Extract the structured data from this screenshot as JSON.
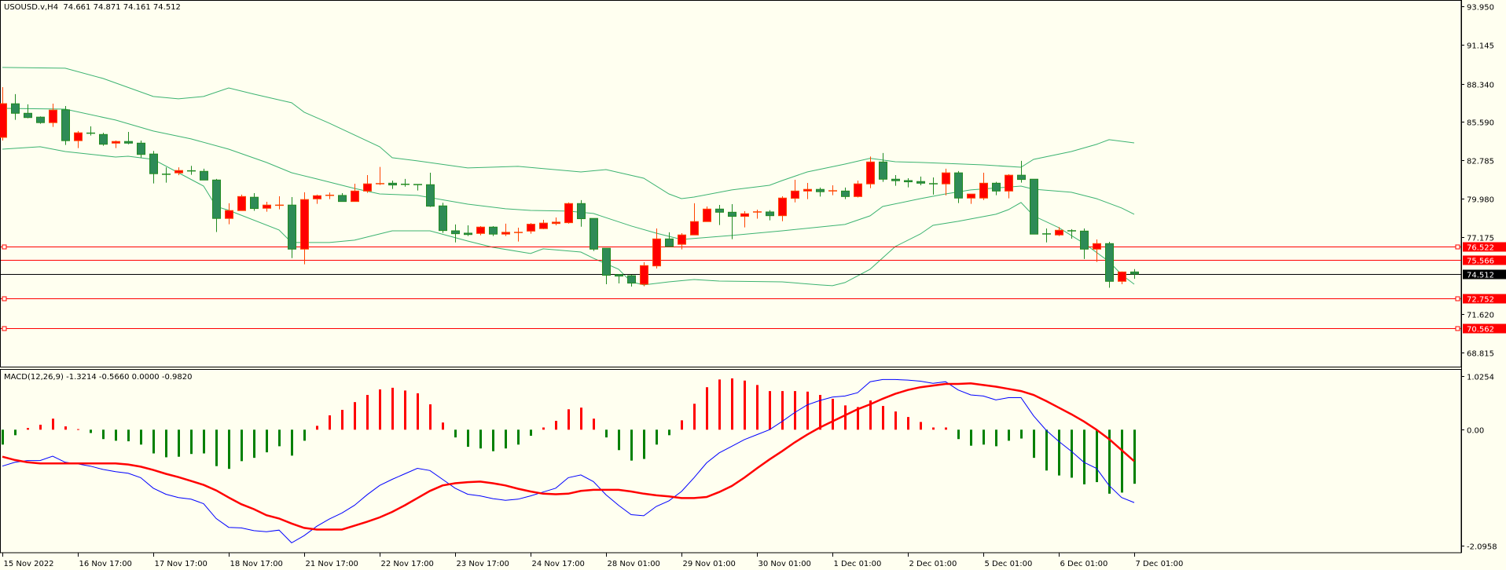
{
  "header": {
    "symbol_line": "USOUSD.v,H4  74.661 74.871 74.161 74.512"
  },
  "macd_header": {
    "label": "MACD(12,26,9) -1.3214 -0.5660 0.0000 -0.9820"
  },
  "colors": {
    "background": "#FFFFF0",
    "bull_body": "#FF0000",
    "bull_edge": "#FF4500",
    "bear_body": "#2E8B57",
    "bear_edge": "#228B22",
    "bands": "#3CB371",
    "hline": "#FF0000",
    "bid_line": "#000000",
    "hist_pos": "#FF0000",
    "hist_neg": "#008000",
    "macd_main": "#0000FF",
    "macd_signal": "#FF0000"
  },
  "chart_data": {
    "type": "candlestick",
    "symbol": "USOUSD.v",
    "timeframe": "H4",
    "ylim": [
      67.78,
      94.42
    ],
    "price_axis": {
      "ticks": [
        "93.950",
        "91.145",
        "88.340",
        "85.590",
        "82.785",
        "79.980",
        "77.175",
        "71.620",
        "68.815"
      ]
    },
    "time_labels": [
      {
        "bar": 0,
        "text": "15 Nov 2022"
      },
      {
        "bar": 6,
        "text": "16 Nov 17:00"
      },
      {
        "bar": 12,
        "text": "17 Nov 17:00"
      },
      {
        "bar": 18,
        "text": "18 Nov 17:00"
      },
      {
        "bar": 24,
        "text": "21 Nov 17:00"
      },
      {
        "bar": 30,
        "text": "22 Nov 17:00"
      },
      {
        "bar": 36,
        "text": "23 Nov 17:00"
      },
      {
        "bar": 42,
        "text": "24 Nov 17:00"
      },
      {
        "bar": 48,
        "text": "28 Nov 01:00"
      },
      {
        "bar": 54,
        "text": "29 Nov 01:00"
      },
      {
        "bar": 60,
        "text": "30 Nov 01:00"
      },
      {
        "bar": 66,
        "text": "1 Dec 01:00"
      },
      {
        "bar": 72,
        "text": "2 Dec 01:00"
      },
      {
        "bar": 78,
        "text": "5 Dec 01:00"
      },
      {
        "bar": 84,
        "text": "6 Dec 01:00"
      },
      {
        "bar": 90,
        "text": "7 Dec 01:00"
      }
    ],
    "ohlc": [
      [
        84.44,
        88.09,
        84.21,
        86.89
      ],
      [
        86.88,
        87.58,
        85.71,
        86.19
      ],
      [
        86.19,
        86.84,
        85.83,
        85.88
      ],
      [
        85.91,
        85.96,
        85.43,
        85.51
      ],
      [
        85.51,
        86.89,
        85.2,
        86.42
      ],
      [
        86.44,
        86.72,
        83.89,
        84.2
      ],
      [
        84.2,
        84.9,
        83.66,
        84.77
      ],
      [
        84.78,
        85.24,
        84.57,
        84.71
      ],
      [
        84.65,
        84.77,
        83.83,
        83.94
      ],
      [
        84.02,
        84.21,
        83.66,
        84.14
      ],
      [
        84.14,
        84.84,
        83.94,
        84.02
      ],
      [
        84.02,
        84.21,
        82.96,
        83.2
      ],
      [
        83.23,
        83.45,
        81.09,
        81.8
      ],
      [
        81.8,
        82.26,
        81.15,
        81.72
      ],
      [
        81.86,
        82.26,
        81.69,
        82.03
      ],
      [
        82.04,
        82.37,
        81.72,
        81.97
      ],
      [
        81.97,
        82.16,
        81.34,
        81.34
      ],
      [
        81.34,
        81.42,
        77.56,
        78.55
      ],
      [
        78.55,
        79.65,
        78.13,
        79.12
      ],
      [
        79.12,
        80.28,
        79.12,
        80.14
      ],
      [
        80.09,
        80.39,
        79.1,
        79.27
      ],
      [
        79.29,
        79.76,
        79.04,
        79.52
      ],
      [
        79.5,
        80.16,
        79.21,
        79.52
      ],
      [
        79.52,
        80.1,
        75.67,
        76.32
      ],
      [
        76.32,
        80.45,
        75.22,
        79.92
      ],
      [
        79.97,
        80.28,
        79.61,
        80.2
      ],
      [
        80.22,
        80.43,
        79.95,
        80.24
      ],
      [
        80.22,
        80.39,
        79.78,
        79.78
      ],
      [
        79.78,
        81.07,
        79.78,
        80.54
      ],
      [
        80.54,
        81.7,
        80.41,
        81.06
      ],
      [
        81.04,
        82.29,
        80.98,
        81.11
      ],
      [
        81.11,
        81.3,
        80.69,
        80.98
      ],
      [
        81.05,
        81.42,
        80.86,
        81.01
      ],
      [
        81.02,
        81.02,
        80.58,
        81.0
      ],
      [
        81.0,
        81.87,
        79.38,
        79.44
      ],
      [
        79.46,
        79.69,
        77.5,
        77.67
      ],
      [
        77.65,
        78.11,
        76.81,
        77.44
      ],
      [
        77.48,
        78.05,
        77.27,
        77.38
      ],
      [
        77.46,
        77.99,
        77.33,
        77.92
      ],
      [
        77.92,
        77.99,
        77.27,
        77.41
      ],
      [
        77.41,
        78.17,
        77.27,
        77.54
      ],
      [
        77.51,
        77.88,
        76.87,
        77.55
      ],
      [
        77.63,
        78.21,
        77.44,
        78.13
      ],
      [
        77.81,
        78.45,
        77.77,
        78.21
      ],
      [
        78.18,
        78.62,
        78.05,
        78.28
      ],
      [
        78.24,
        79.71,
        78.17,
        79.63
      ],
      [
        79.63,
        79.88,
        77.95,
        78.53
      ],
      [
        78.55,
        78.55,
        76.19,
        76.32
      ],
      [
        76.38,
        76.38,
        73.77,
        74.42
      ],
      [
        74.47,
        74.51,
        73.83,
        74.36
      ],
      [
        74.39,
        74.46,
        73.6,
        73.85
      ],
      [
        73.77,
        75.37,
        73.62,
        75.12
      ],
      [
        75.1,
        77.82,
        74.91,
        77.06
      ],
      [
        77.06,
        77.54,
        76.51,
        76.51
      ],
      [
        76.67,
        77.48,
        76.3,
        77.35
      ],
      [
        77.35,
        79.65,
        77.35,
        78.32
      ],
      [
        78.32,
        79.42,
        78.32,
        79.23
      ],
      [
        79.23,
        79.53,
        78.07,
        79.0
      ],
      [
        79.0,
        79.59,
        77.04,
        78.7
      ],
      [
        78.7,
        79.08,
        77.9,
        78.89
      ],
      [
        79.01,
        79.19,
        78.53,
        79.03
      ],
      [
        79.02,
        79.15,
        78.41,
        78.75
      ],
      [
        78.75,
        80.16,
        78.35,
        80.03
      ],
      [
        80.01,
        81.36,
        79.72,
        80.54
      ],
      [
        80.54,
        81.13,
        79.95,
        80.66
      ],
      [
        80.66,
        80.79,
        80.14,
        80.49
      ],
      [
        80.54,
        80.96,
        80.24,
        80.57
      ],
      [
        80.54,
        80.79,
        79.95,
        80.14
      ],
      [
        80.14,
        81.3,
        80.07,
        81.06
      ],
      [
        81.06,
        83.05,
        80.75,
        82.65
      ],
      [
        82.65,
        83.3,
        81.21,
        81.4
      ],
      [
        81.4,
        81.7,
        80.92,
        81.29
      ],
      [
        81.3,
        81.47,
        80.81,
        81.21
      ],
      [
        81.23,
        81.59,
        80.96,
        81.11
      ],
      [
        81.11,
        81.53,
        80.28,
        81.03
      ],
      [
        81.06,
        82.16,
        80.22,
        81.86
      ],
      [
        81.86,
        81.99,
        79.67,
        80.03
      ],
      [
        80.03,
        80.32,
        79.61,
        80.32
      ],
      [
        80.03,
        81.87,
        79.89,
        81.11
      ],
      [
        81.11,
        81.21,
        80.24,
        80.54
      ],
      [
        80.54,
        81.76,
        80.01,
        81.69
      ],
      [
        81.69,
        82.73,
        81.15,
        81.38
      ],
      [
        81.4,
        81.4,
        77.41,
        77.41
      ],
      [
        77.44,
        77.82,
        76.81,
        77.41
      ],
      [
        77.35,
        77.92,
        77.27,
        77.69
      ],
      [
        77.69,
        77.77,
        77.08,
        77.61
      ],
      [
        77.63,
        77.82,
        75.6,
        76.32
      ],
      [
        76.32,
        77.02,
        75.39,
        76.72
      ],
      [
        76.72,
        76.85,
        73.51,
        73.98
      ],
      [
        73.98,
        74.7,
        73.77,
        74.66
      ],
      [
        74.661,
        74.871,
        74.161,
        74.512
      ]
    ],
    "bollinger": {
      "upper": [
        [
          0,
          89.52
        ],
        [
          5,
          89.46
        ],
        [
          8,
          88.72
        ],
        [
          12,
          87.41
        ],
        [
          14,
          87.24
        ],
        [
          16,
          87.41
        ],
        [
          18,
          88.03
        ],
        [
          20,
          87.58
        ],
        [
          23,
          86.95
        ],
        [
          24,
          86.27
        ],
        [
          26,
          85.47
        ],
        [
          30,
          83.76
        ],
        [
          31,
          82.96
        ],
        [
          33,
          82.73
        ],
        [
          37,
          82.22
        ],
        [
          41,
          82.33
        ],
        [
          46,
          81.93
        ],
        [
          48,
          82.1
        ],
        [
          51,
          81.47
        ],
        [
          53,
          80.33
        ],
        [
          54,
          79.99
        ],
        [
          55,
          80.1
        ],
        [
          58,
          80.62
        ],
        [
          61,
          80.96
        ],
        [
          62,
          81.3
        ],
        [
          64,
          81.93
        ],
        [
          67,
          82.5
        ],
        [
          69,
          82.92
        ],
        [
          71,
          82.67
        ],
        [
          73,
          82.62
        ],
        [
          78,
          82.44
        ],
        [
          81,
          82.27
        ],
        [
          82,
          82.84
        ],
        [
          85,
          83.41
        ],
        [
          87,
          83.93
        ],
        [
          88,
          84.27
        ],
        [
          90,
          84.04
        ]
      ],
      "middle": [
        [
          0,
          86.55
        ],
        [
          5,
          86.49
        ],
        [
          9,
          85.7
        ],
        [
          12,
          84.9
        ],
        [
          15,
          84.33
        ],
        [
          18,
          83.58
        ],
        [
          21,
          82.62
        ],
        [
          23,
          81.87
        ],
        [
          25,
          81.42
        ],
        [
          28,
          80.73
        ],
        [
          30,
          80.33
        ],
        [
          33,
          80.22
        ],
        [
          37,
          79.59
        ],
        [
          40,
          79.25
        ],
        [
          42,
          79.13
        ],
        [
          45,
          79.08
        ],
        [
          47,
          78.91
        ],
        [
          50,
          78.0
        ],
        [
          52,
          77.48
        ],
        [
          54,
          77.02
        ],
        [
          58,
          77.31
        ],
        [
          62,
          77.65
        ],
        [
          67,
          78.11
        ],
        [
          69,
          78.74
        ],
        [
          70,
          79.42
        ],
        [
          73,
          79.99
        ],
        [
          75,
          80.33
        ],
        [
          77,
          80.62
        ],
        [
          81,
          80.9
        ],
        [
          82,
          80.67
        ],
        [
          85,
          80.45
        ],
        [
          87,
          79.99
        ],
        [
          89,
          79.31
        ],
        [
          90,
          78.85
        ]
      ],
      "lower": [
        [
          0,
          83.58
        ],
        [
          3,
          83.76
        ],
        [
          5,
          83.41
        ],
        [
          9,
          83.01
        ],
        [
          10,
          83.07
        ],
        [
          12,
          82.84
        ],
        [
          16,
          80.9
        ],
        [
          17,
          79.42
        ],
        [
          18,
          79.14
        ],
        [
          22,
          77.71
        ],
        [
          23,
          76.8
        ],
        [
          26,
          76.8
        ],
        [
          28,
          76.97
        ],
        [
          31,
          77.65
        ],
        [
          34,
          77.65
        ],
        [
          37,
          76.91
        ],
        [
          39,
          76.45
        ],
        [
          42,
          76.0
        ],
        [
          43,
          76.34
        ],
        [
          46,
          76.11
        ],
        [
          47,
          75.66
        ],
        [
          49,
          74.86
        ],
        [
          50,
          73.94
        ],
        [
          51,
          73.72
        ],
        [
          53,
          73.94
        ],
        [
          55,
          74.11
        ],
        [
          57,
          74.0
        ],
        [
          62,
          73.94
        ],
        [
          65,
          73.72
        ],
        [
          66,
          73.66
        ],
        [
          67,
          73.89
        ],
        [
          69,
          74.86
        ],
        [
          71,
          76.51
        ],
        [
          73,
          77.42
        ],
        [
          74,
          78.05
        ],
        [
          76,
          78.34
        ],
        [
          79,
          78.85
        ],
        [
          80,
          79.19
        ],
        [
          81,
          79.71
        ],
        [
          82,
          78.74
        ],
        [
          84,
          77.88
        ],
        [
          86,
          76.74
        ],
        [
          88,
          75.42
        ],
        [
          89,
          74.46
        ],
        [
          90,
          73.77
        ]
      ]
    },
    "horizontal_lines": [
      {
        "price": "76.522",
        "color": "#FF0000",
        "markers": true
      },
      {
        "price": "75.566",
        "color": "#FF0000",
        "markers": false
      },
      {
        "price": "74.512",
        "color": "#000000",
        "markers": false,
        "bid": true
      },
      {
        "price": "72.752",
        "color": "#FF0000",
        "markers": true
      },
      {
        "price": "70.562",
        "color": "#FF0000",
        "markers": true
      }
    ],
    "macd": {
      "params": "12,26,9",
      "ylim": [
        -2.23,
        1.1
      ],
      "axis_labels": [
        "1.0254",
        "0.00",
        "-2.0958"
      ],
      "histogram": [
        -0.27,
        -0.1,
        0.03,
        0.09,
        0.2,
        0.06,
        0.01,
        -0.06,
        -0.17,
        -0.2,
        -0.21,
        -0.27,
        -0.43,
        -0.5,
        -0.49,
        -0.44,
        -0.43,
        -0.66,
        -0.71,
        -0.57,
        -0.51,
        -0.41,
        -0.3,
        -0.47,
        -0.2,
        0.07,
        0.26,
        0.36,
        0.5,
        0.63,
        0.73,
        0.76,
        0.71,
        0.66,
        0.46,
        0.13,
        -0.14,
        -0.31,
        -0.34,
        -0.39,
        -0.34,
        -0.27,
        -0.11,
        0.04,
        0.16,
        0.37,
        0.4,
        0.2,
        -0.14,
        -0.37,
        -0.56,
        -0.53,
        -0.27,
        -0.1,
        0.17,
        0.47,
        0.77,
        0.91,
        0.93,
        0.89,
        0.81,
        0.7,
        0.7,
        0.7,
        0.69,
        0.63,
        0.56,
        0.44,
        0.41,
        0.53,
        0.43,
        0.33,
        0.23,
        0.14,
        0.04,
        0.04,
        -0.17,
        -0.29,
        -0.27,
        -0.3,
        -0.2,
        -0.16,
        -0.51,
        -0.74,
        -0.83,
        -0.87,
        -0.99,
        -0.95,
        -1.16,
        -1.14,
        -0.98
      ],
      "main": [
        -0.66,
        -0.59,
        -0.56,
        -0.56,
        -0.48,
        -0.59,
        -0.62,
        -0.66,
        -0.72,
        -0.76,
        -0.79,
        -0.87,
        -1.06,
        -1.17,
        -1.23,
        -1.26,
        -1.34,
        -1.61,
        -1.77,
        -1.78,
        -1.83,
        -1.85,
        -1.82,
        -2.05,
        -1.92,
        -1.75,
        -1.62,
        -1.51,
        -1.37,
        -1.18,
        -1.01,
        -0.9,
        -0.8,
        -0.7,
        -0.74,
        -0.9,
        -1.06,
        -1.17,
        -1.2,
        -1.25,
        -1.28,
        -1.26,
        -1.2,
        -1.13,
        -1.06,
        -0.87,
        -0.82,
        -0.94,
        -1.18,
        -1.37,
        -1.54,
        -1.56,
        -1.39,
        -1.29,
        -1.12,
        -0.87,
        -0.6,
        -0.42,
        -0.3,
        -0.18,
        -0.09,
        0.0,
        0.15,
        0.31,
        0.45,
        0.53,
        0.59,
        0.61,
        0.67,
        0.87,
        0.91,
        0.91,
        0.9,
        0.88,
        0.84,
        0.87,
        0.72,
        0.63,
        0.61,
        0.54,
        0.58,
        0.58,
        0.25,
        -0.01,
        -0.21,
        -0.39,
        -0.59,
        -0.7,
        -1.01,
        -1.23,
        -1.32
      ],
      "signal": [
        -0.49,
        -0.55,
        -0.59,
        -0.61,
        -0.61,
        -0.61,
        -0.61,
        -0.61,
        -0.61,
        -0.61,
        -0.63,
        -0.67,
        -0.73,
        -0.8,
        -0.86,
        -0.93,
        -1.0,
        -1.1,
        -1.23,
        -1.35,
        -1.44,
        -1.55,
        -1.61,
        -1.7,
        -1.78,
        -1.81,
        -1.81,
        -1.81,
        -1.74,
        -1.67,
        -1.59,
        -1.49,
        -1.37,
        -1.24,
        -1.11,
        -1.01,
        -0.97,
        -0.95,
        -0.94,
        -0.97,
        -1.01,
        -1.07,
        -1.12,
        -1.16,
        -1.17,
        -1.16,
        -1.11,
        -1.09,
        -1.09,
        -1.09,
        -1.12,
        -1.16,
        -1.19,
        -1.21,
        -1.24,
        -1.24,
        -1.22,
        -1.13,
        -1.02,
        -0.87,
        -0.7,
        -0.54,
        -0.39,
        -0.23,
        -0.09,
        0.04,
        0.15,
        0.26,
        0.37,
        0.46,
        0.56,
        0.65,
        0.72,
        0.77,
        0.8,
        0.83,
        0.83,
        0.84,
        0.81,
        0.78,
        0.74,
        0.7,
        0.63,
        0.52,
        0.4,
        0.28,
        0.15,
        0.0,
        -0.17,
        -0.37,
        -0.57
      ]
    }
  }
}
